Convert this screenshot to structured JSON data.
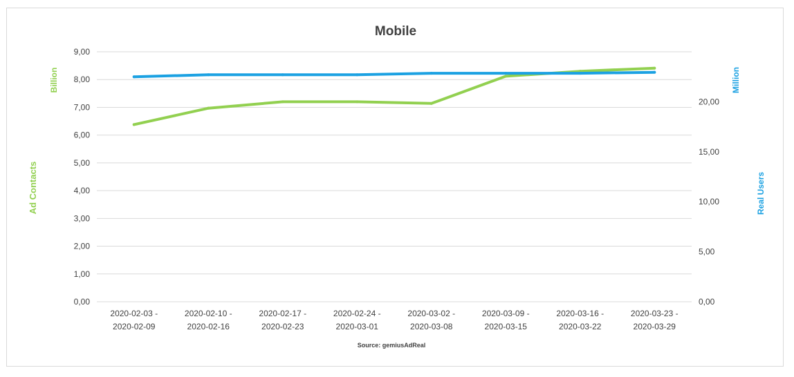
{
  "chart_data": {
    "type": "line",
    "title": "Mobile",
    "source": "Source: gemiusAdReal",
    "categories": [
      [
        "2020-02-03 -",
        "2020-02-09"
      ],
      [
        "2020-02-10 -",
        "2020-02-16"
      ],
      [
        "2020-02-17 -",
        "2020-02-23"
      ],
      [
        "2020-02-24 -",
        "2020-03-01"
      ],
      [
        "2020-03-02 -",
        "2020-03-08"
      ],
      [
        "2020-03-09 -",
        "2020-03-15"
      ],
      [
        "2020-03-16 -",
        "2020-03-22"
      ],
      [
        "2020-03-23 -",
        "2020-03-29"
      ]
    ],
    "y_left": {
      "label": "Ad Contacts",
      "unit": "Billion",
      "ylim": [
        0,
        9
      ],
      "ticks": [
        "0,00",
        "1,00",
        "2,00",
        "3,00",
        "4,00",
        "5,00",
        "6,00",
        "7,00",
        "8,00",
        "9,00"
      ],
      "color": "#92d050"
    },
    "y_right": {
      "label": "Real Users",
      "unit": "Million",
      "ylim": [
        0,
        25
      ],
      "ticks": [
        "0,00",
        "5,00",
        "10,00",
        "15,00",
        "20,00"
      ],
      "color": "#1ba1e2"
    },
    "series": [
      {
        "axis": "left",
        "color": "#92d050",
        "values": [
          6.38,
          6.97,
          7.2,
          7.2,
          7.14,
          8.12,
          8.3,
          8.41
        ]
      },
      {
        "axis": "right",
        "color": "#1ba1e2",
        "values": [
          22.5,
          22.7,
          22.7,
          22.7,
          22.85,
          22.85,
          22.85,
          22.95
        ]
      }
    ],
    "grid": true,
    "legend": "none"
  }
}
